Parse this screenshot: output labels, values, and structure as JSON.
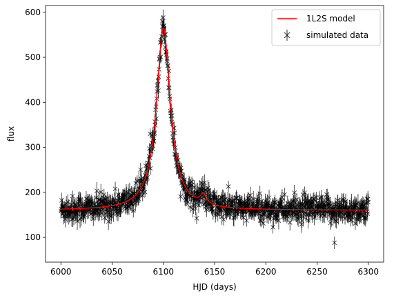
{
  "chart_data": {
    "type": "scatter",
    "xlabel": "HJD (days)",
    "ylabel": "flux",
    "xlim": [
      5985,
      6315
    ],
    "ylim": [
      45,
      615
    ],
    "xticks": [
      6000,
      6050,
      6100,
      6150,
      6200,
      6250,
      6300
    ],
    "yticks": [
      100,
      200,
      300,
      400,
      500,
      600
    ],
    "legend_position": "upper-right",
    "grid": false,
    "model": {
      "name": "1L2S model",
      "color": "#ff0000",
      "baseline": 160,
      "peak1": {
        "t0": 6100,
        "amplitude": 405,
        "width": 8.2
      },
      "peak2": {
        "t0": 6139,
        "amplitude": 22,
        "width": 3.5
      },
      "t_start": 6000,
      "t_end": 6300
    },
    "data": {
      "name": "simulated data",
      "color": "#000000",
      "n_points": 900,
      "error_sigma": 14,
      "x_start": 6000,
      "x_end": 6300,
      "outlier": {
        "x": 6267,
        "y": 88
      }
    }
  }
}
